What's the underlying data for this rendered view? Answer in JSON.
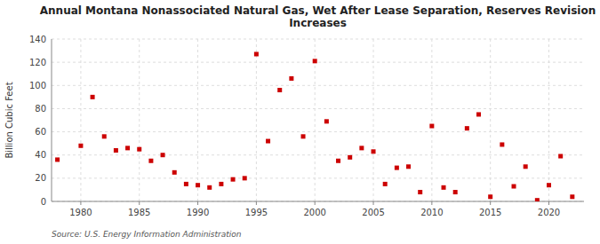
{
  "chart_data": {
    "type": "scatter",
    "title": "Annual Montana Nonassociated Natural Gas, Wet After Lease Separation, Reserves Revision\nIncreases",
    "y_label": "Billion Cubic Feet",
    "annotations": [
      "Source: U.S. Energy Information Administration"
    ],
    "color": "#cc0000",
    "marker": "square",
    "grid": true,
    "xlim": [
      1977.5,
      2023
    ],
    "ylim": [
      0,
      140
    ],
    "xticks": [
      1980,
      1985,
      1990,
      1995,
      2000,
      2005,
      2010,
      2015,
      2020
    ],
    "yticks": [
      0,
      20,
      40,
      60,
      80,
      100,
      120,
      140
    ],
    "x": [
      1978,
      1980,
      1981,
      1982,
      1983,
      1984,
      1985,
      1986,
      1987,
      1988,
      1989,
      1990,
      1991,
      1992,
      1993,
      1994,
      1995,
      1996,
      1997,
      1998,
      1999,
      2000,
      2001,
      2002,
      2003,
      2004,
      2005,
      2006,
      2007,
      2008,
      2009,
      2010,
      2011,
      2012,
      2013,
      2014,
      2015,
      2016,
      2017,
      2018,
      2019,
      2020,
      2021,
      2022
    ],
    "values": [
      36,
      48,
      90,
      56,
      44,
      46,
      45,
      35,
      40,
      25,
      15,
      14,
      12,
      15,
      19,
      20,
      127,
      52,
      96,
      106,
      56,
      121,
      69,
      35,
      38,
      46,
      43,
      15,
      29,
      30,
      8,
      65,
      12,
      8,
      63,
      75,
      4,
      49,
      13,
      30,
      1,
      14,
      39,
      4
    ]
  }
}
